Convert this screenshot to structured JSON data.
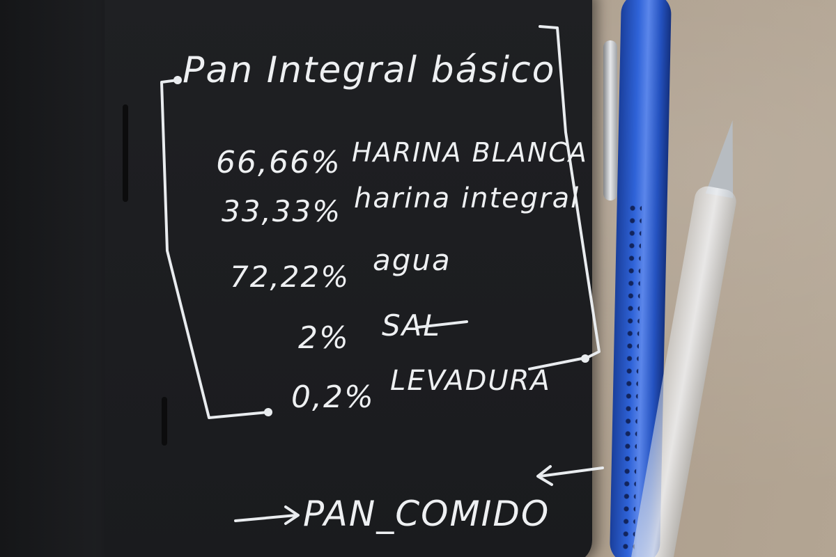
{
  "notebook": {
    "title": "Pan Integral básico",
    "ingredients": [
      {
        "percent": "66,66%",
        "name": "HARINA BLANCA"
      },
      {
        "percent": "33,33%",
        "name": "harina integral"
      },
      {
        "percent": "72,22%",
        "name": "agua"
      },
      {
        "percent": "2%",
        "name": "SAL"
      },
      {
        "percent": "0,2%",
        "name": "LEVADURA"
      }
    ],
    "signature": "PAN_COMIDO"
  },
  "colors": {
    "page": "#1d1e21",
    "ink": "#eef0f2",
    "pen_blue": "#2f63d8",
    "desk": "#a9998a"
  }
}
